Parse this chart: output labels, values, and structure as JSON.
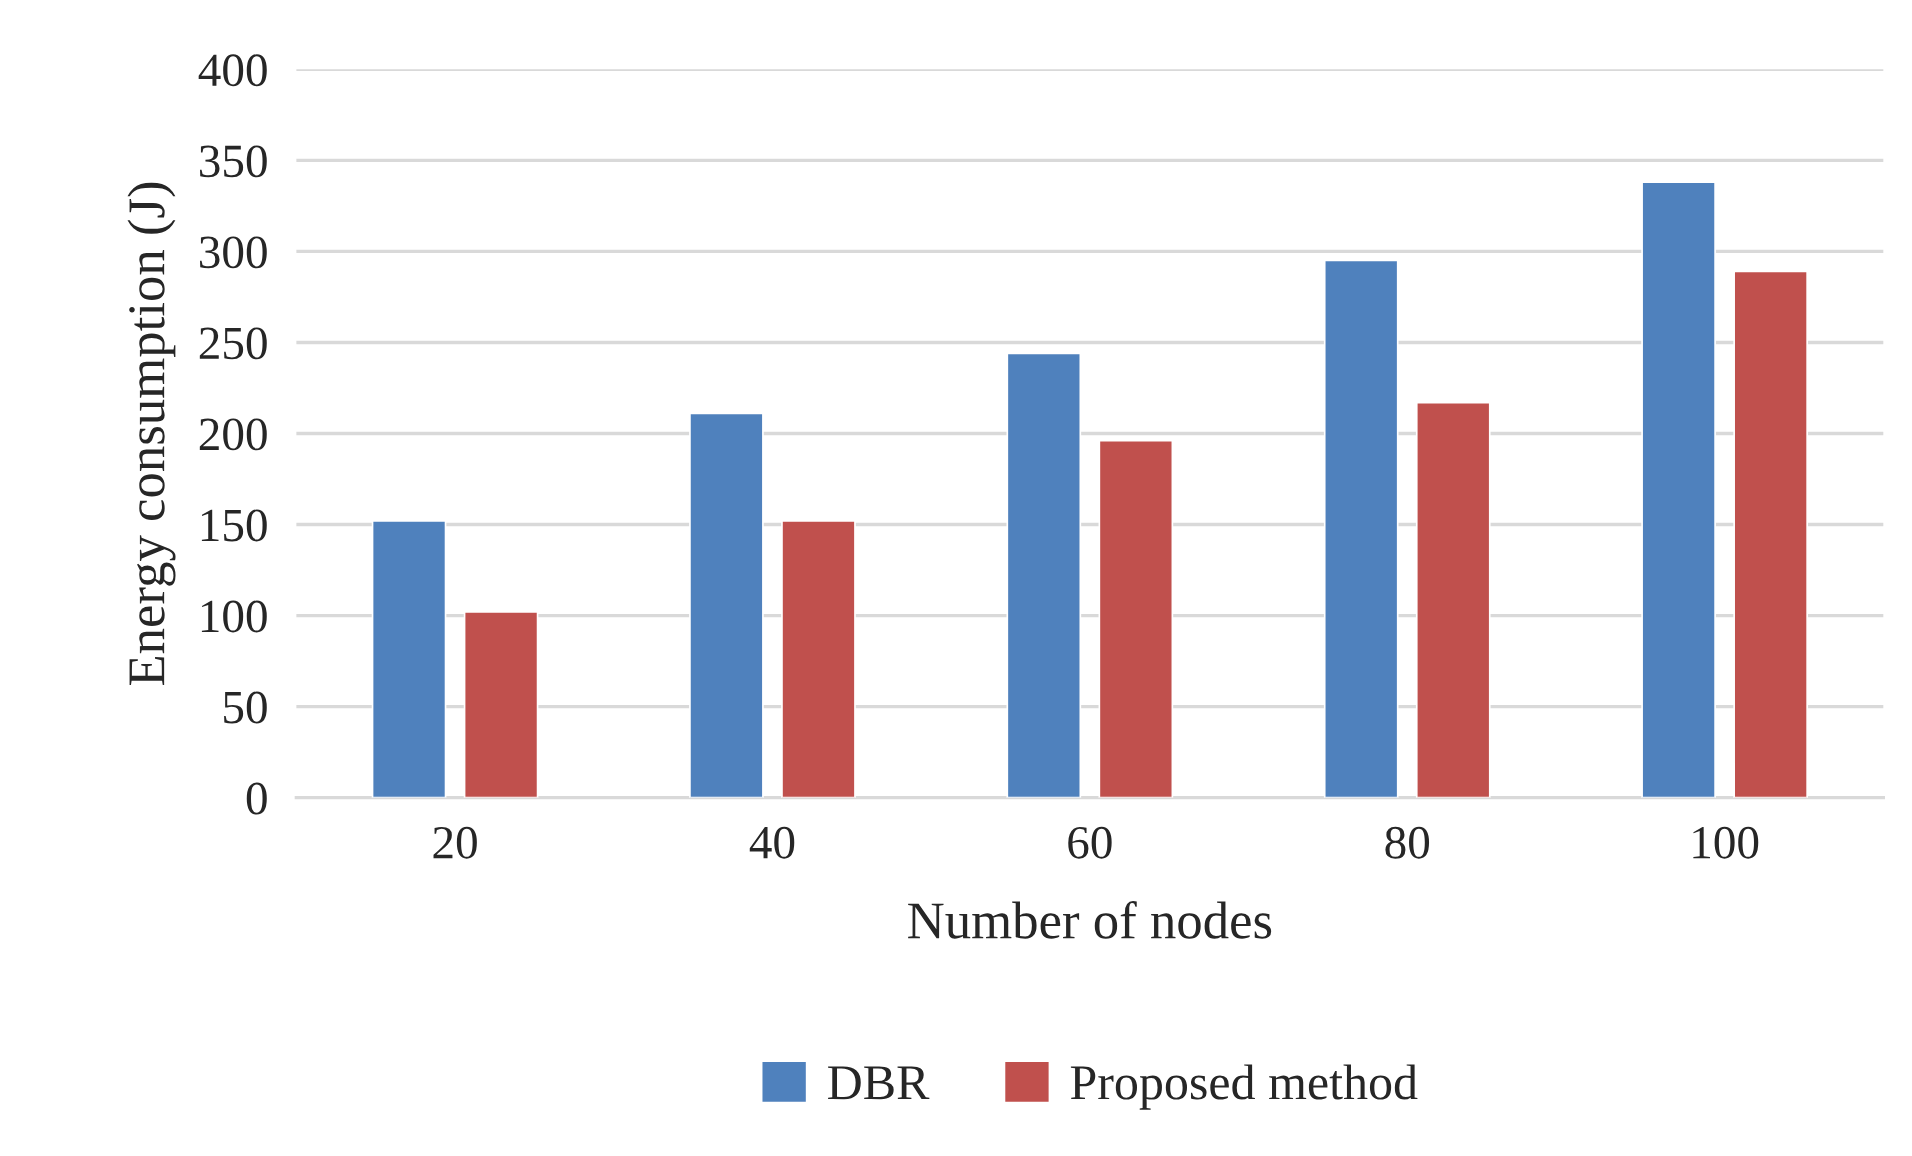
{
  "chart_data": {
    "type": "bar",
    "xlabel": "Number of nodes",
    "ylabel": "Energy consumption (J)",
    "categories": [
      "20",
      "40",
      "60",
      "80",
      "100"
    ],
    "series": [
      {
        "name": "DBR",
        "color": "#4f81bd",
        "values": [
          152,
          211,
          244,
          295,
          338
        ]
      },
      {
        "name": "Proposed method",
        "color": "#c0504d",
        "values": [
          102,
          152,
          196,
          217,
          289
        ]
      }
    ],
    "ylim": [
      0,
      400
    ],
    "yticks": [
      0,
      50,
      100,
      150,
      200,
      250,
      300,
      350,
      400
    ],
    "grid": "y",
    "legend": "bottom"
  }
}
